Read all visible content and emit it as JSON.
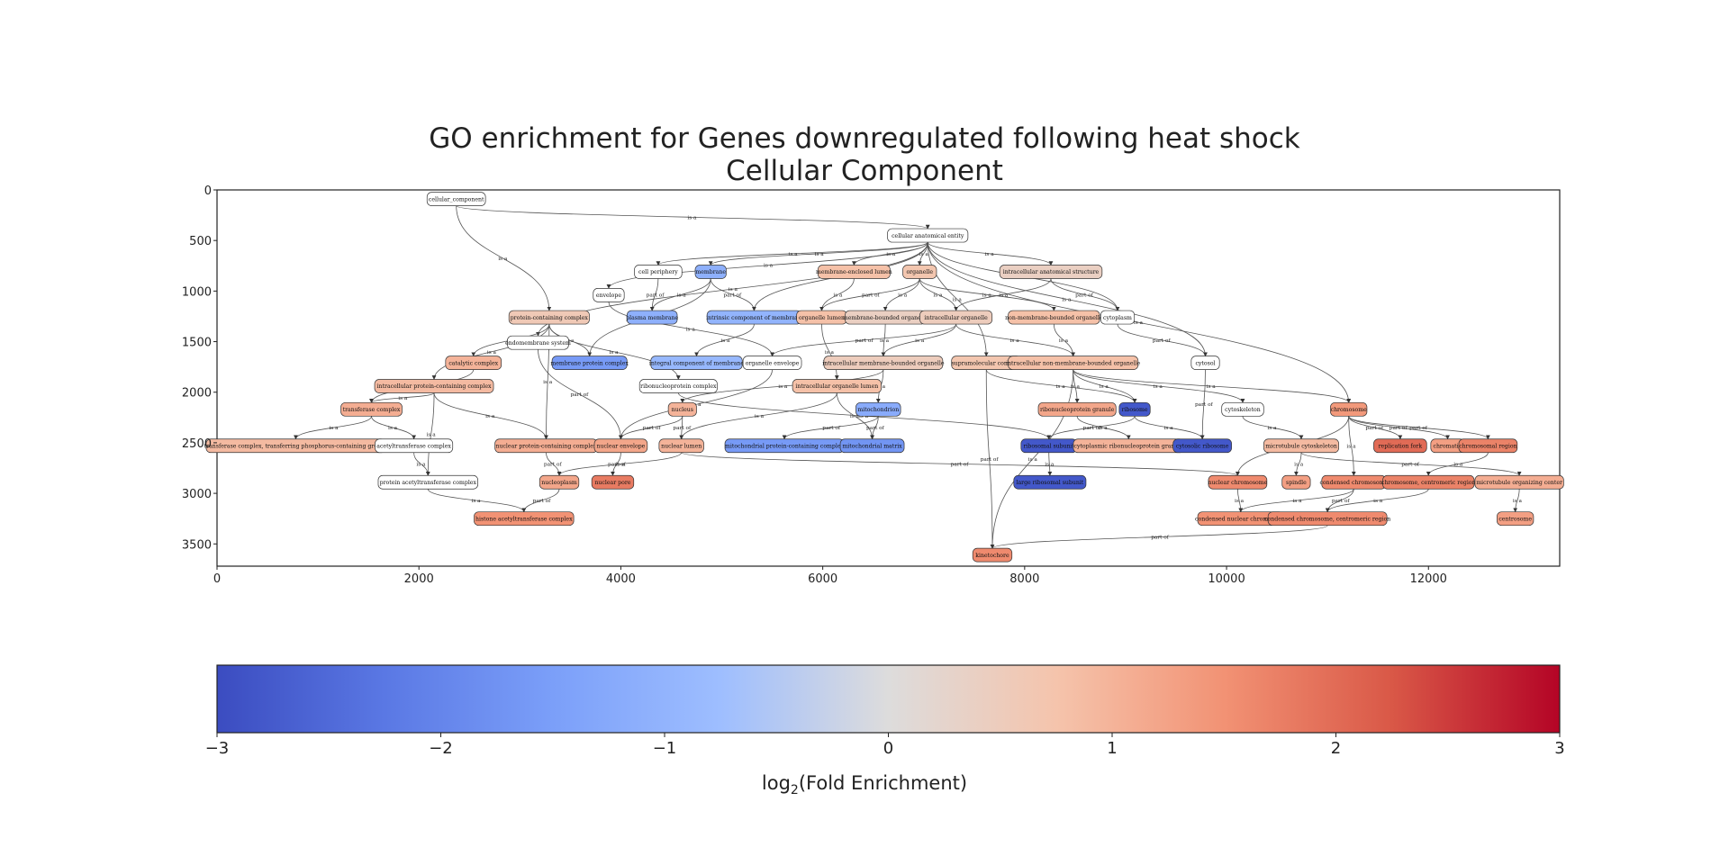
{
  "title": {
    "line1": "GO enrichment for Genes downregulated following heat shock",
    "line2": "Cellular Component"
  },
  "axes": {
    "x_ticks": [
      "0",
      "2000",
      "4000",
      "6000",
      "8000",
      "10000",
      "12000"
    ],
    "y_ticks": [
      "0",
      "500",
      "1000",
      "1500",
      "2000",
      "2500",
      "3000",
      "3500"
    ]
  },
  "colorbar": {
    "ticks": [
      "−3",
      "−2",
      "−1",
      "0",
      "1",
      "2",
      "3"
    ],
    "label_main": "log",
    "label_sub": "2",
    "label_rest": "(Fold Enrichment)",
    "range": [
      -3,
      3
    ]
  },
  "nodes": [
    {
      "id": "cc",
      "label": "cellular_component",
      "x": 2370,
      "y": 90,
      "v": null
    },
    {
      "id": "cae",
      "label": "cellular anatomical entity",
      "x": 7040,
      "y": 450,
      "v": null
    },
    {
      "id": "cp",
      "label": "cell periphery",
      "x": 4370,
      "y": 810,
      "v": null
    },
    {
      "id": "mem",
      "label": "membrane",
      "x": 4890,
      "y": 810,
      "v": -1.1
    },
    {
      "id": "mel",
      "label": "membrane-enclosed lumen",
      "x": 6310,
      "y": 810,
      "v": 0.8
    },
    {
      "id": "org",
      "label": "organelle",
      "x": 6960,
      "y": 810,
      "v": 0.7
    },
    {
      "id": "ias",
      "label": "intracellular anatomical structure",
      "x": 8260,
      "y": 810,
      "v": 0.4
    },
    {
      "id": "env",
      "label": "envelope",
      "x": 3880,
      "y": 1040,
      "v": null
    },
    {
      "id": "pm",
      "label": "plasma membrane",
      "x": 4310,
      "y": 1260,
      "v": -1.1
    },
    {
      "id": "icm",
      "label": "intrinsic component of membrane",
      "x": 5320,
      "y": 1260,
      "v": -1.0
    },
    {
      "id": "ol",
      "label": "organelle lumen",
      "x": 5990,
      "y": 1260,
      "v": 0.8
    },
    {
      "id": "mbo",
      "label": "membrane-bounded organelle",
      "x": 6620,
      "y": 1260,
      "v": 0.4
    },
    {
      "id": "io",
      "label": "intracellular organelle",
      "x": 7320,
      "y": 1260,
      "v": 0.5
    },
    {
      "id": "nmbo",
      "label": "non-membrane-bounded organelle",
      "x": 8290,
      "y": 1260,
      "v": 0.8
    },
    {
      "id": "cyto",
      "label": "cytoplasm",
      "x": 8920,
      "y": 1260,
      "v": null
    },
    {
      "id": "pcc",
      "label": "protein-containing complex",
      "x": 3290,
      "y": 1260,
      "v": 0.6
    },
    {
      "id": "ems",
      "label": "endomembrane system",
      "x": 3180,
      "y": 1510,
      "v": null
    },
    {
      "id": "cat",
      "label": "catalytic complex",
      "x": 2540,
      "y": 1710,
      "v": 1.0
    },
    {
      "id": "mpc",
      "label": "membrane protein complex",
      "x": 3690,
      "y": 1710,
      "v": -1.6
    },
    {
      "id": "intcm",
      "label": "integral component of membrane",
      "x": 4750,
      "y": 1710,
      "v": -0.9
    },
    {
      "id": "oe",
      "label": "organelle envelope",
      "x": 5500,
      "y": 1710,
      "v": null
    },
    {
      "id": "imbo",
      "label": "intracellular membrane-bounded organelle",
      "x": 6600,
      "y": 1710,
      "v": 0.5
    },
    {
      "id": "smc",
      "label": "supramolecular complex",
      "x": 7620,
      "y": 1710,
      "v": 0.7
    },
    {
      "id": "inmbo",
      "label": "intracellular non-membrane-bounded organelle",
      "x": 8480,
      "y": 1710,
      "v": 0.8
    },
    {
      "id": "cytosol",
      "label": "cytosol",
      "x": 9790,
      "y": 1710,
      "v": null
    },
    {
      "id": "ipc",
      "label": "intracellular protein-containing complex",
      "x": 2150,
      "y": 1940,
      "v": 0.9
    },
    {
      "id": "rnp",
      "label": "ribonucleoprotein complex",
      "x": 4570,
      "y": 1940,
      "v": null
    },
    {
      "id": "iol",
      "label": "intracellular organelle lumen",
      "x": 6140,
      "y": 1940,
      "v": 0.8
    },
    {
      "id": "tc",
      "label": "transferase complex",
      "x": 1530,
      "y": 2170,
      "v": 1.1
    },
    {
      "id": "nucleus",
      "label": "nucleus",
      "x": 4610,
      "y": 2170,
      "v": 1.0
    },
    {
      "id": "mito",
      "label": "mitochondrion",
      "x": 6550,
      "y": 2170,
      "v": -1.2
    },
    {
      "id": "rnpg",
      "label": "ribonucleoprotein granule",
      "x": 8520,
      "y": 2170,
      "v": 1.2
    },
    {
      "id": "ribo",
      "label": "ribosome",
      "x": 9090,
      "y": 2170,
      "v": -2.8
    },
    {
      "id": "cytosk",
      "label": "cytoskeleton",
      "x": 10160,
      "y": 2170,
      "v": null
    },
    {
      "id": "chrom",
      "label": "chromosome",
      "x": 11210,
      "y": 2170,
      "v": 1.4
    },
    {
      "id": "tcp",
      "label": "transferase complex, transferring phosphorus-containing groups",
      "x": 780,
      "y": 2530,
      "v": 0.9
    },
    {
      "id": "act",
      "label": "acetyltransferase complex",
      "x": 1950,
      "y": 2530,
      "v": null
    },
    {
      "id": "npc",
      "label": "nuclear protein-containing complex",
      "x": 3260,
      "y": 2530,
      "v": 1.1
    },
    {
      "id": "nenv",
      "label": "nuclear envelope",
      "x": 4000,
      "y": 2530,
      "v": 1.2
    },
    {
      "id": "nl",
      "label": "nuclear lumen",
      "x": 4600,
      "y": 2530,
      "v": 1.0
    },
    {
      "id": "mpcx",
      "label": "mitochondrial protein-containing complex",
      "x": 5620,
      "y": 2530,
      "v": -1.6
    },
    {
      "id": "mm",
      "label": "mitochondrial matrix",
      "x": 6490,
      "y": 2530,
      "v": -1.7
    },
    {
      "id": "rs",
      "label": "ribosomal subunit",
      "x": 8240,
      "y": 2530,
      "v": -2.8
    },
    {
      "id": "crnpg",
      "label": "cytoplasmic ribonucleoprotein granule",
      "x": 9030,
      "y": 2530,
      "v": 1.0
    },
    {
      "id": "cr",
      "label": "cytosolic ribosome",
      "x": 9760,
      "y": 2530,
      "v": -2.8
    },
    {
      "id": "mcyto",
      "label": "microtubule cytoskeleton",
      "x": 10740,
      "y": 2530,
      "v": 0.9
    },
    {
      "id": "rf",
      "label": "replication fork",
      "x": 11720,
      "y": 2530,
      "v": 2.0
    },
    {
      "id": "chromatin",
      "label": "chromatin",
      "x": 12190,
      "y": 2530,
      "v": 1.3
    },
    {
      "id": "chr",
      "label": "chromosomal region",
      "x": 12590,
      "y": 2530,
      "v": 1.7
    },
    {
      "id": "pact",
      "label": "protein acetyltransferase complex",
      "x": 2090,
      "y": 2890,
      "v": null
    },
    {
      "id": "npl",
      "label": "nucleoplasm",
      "x": 3390,
      "y": 2890,
      "v": 1.2
    },
    {
      "id": "npore",
      "label": "nuclear pore",
      "x": 3920,
      "y": 2890,
      "v": 1.8
    },
    {
      "id": "lrs",
      "label": "large ribosomal subunit",
      "x": 8250,
      "y": 2890,
      "v": -2.8
    },
    {
      "id": "nchr",
      "label": "nuclear chromosome",
      "x": 10110,
      "y": 2890,
      "v": 1.6
    },
    {
      "id": "spindle",
      "label": "spindle",
      "x": 10690,
      "y": 2890,
      "v": 1.3
    },
    {
      "id": "cchr",
      "label": "condensed chromosome",
      "x": 11260,
      "y": 2890,
      "v": 1.6
    },
    {
      "id": "ccr",
      "label": "chromosome, centromeric region",
      "x": 12000,
      "y": 2890,
      "v": 1.7
    },
    {
      "id": "moc",
      "label": "microtubule organizing center",
      "x": 12900,
      "y": 2890,
      "v": 1.1
    },
    {
      "id": "hat",
      "label": "histone acetyltransferase complex",
      "x": 3040,
      "y": 3250,
      "v": 1.5
    },
    {
      "id": "cnc",
      "label": "condensed nuclear chromosome",
      "x": 10140,
      "y": 3250,
      "v": 1.5
    },
    {
      "id": "cccr",
      "label": "condensed chromosome, centromeric region",
      "x": 11000,
      "y": 3250,
      "v": 1.6
    },
    {
      "id": "centro",
      "label": "centrosome",
      "x": 12860,
      "y": 3250,
      "v": 1.3
    },
    {
      "id": "kineto",
      "label": "kinetochore",
      "x": 7680,
      "y": 3610,
      "v": 1.6
    }
  ],
  "edges": [
    {
      "s": "cc",
      "t": "cae",
      "label": "is a"
    },
    {
      "s": "cc",
      "t": "pcc",
      "label": "is a"
    },
    {
      "s": "cae",
      "t": "cp",
      "label": "is a"
    },
    {
      "s": "cae",
      "t": "mem",
      "label": "is a"
    },
    {
      "s": "cae",
      "t": "mel",
      "label": "is a"
    },
    {
      "s": "cae",
      "t": "org",
      "label": "is a"
    },
    {
      "s": "cae",
      "t": "ias",
      "label": "is a"
    },
    {
      "s": "cae",
      "t": "env",
      "label": "is a"
    },
    {
      "s": "cae",
      "t": "icm",
      "label": "is a"
    },
    {
      "s": "cae",
      "t": "cyto",
      "label": "is a"
    },
    {
      "s": "cae",
      "t": "cytosol",
      "label": "is a"
    },
    {
      "s": "cae",
      "t": "ems",
      "label": "is a"
    },
    {
      "s": "cae",
      "t": "chrom",
      "label": "is a"
    },
    {
      "s": "cae",
      "t": "smc",
      "label": "is a"
    },
    {
      "s": "cp",
      "t": "pm",
      "label": "part of"
    },
    {
      "s": "mem",
      "t": "pm",
      "label": "is a"
    },
    {
      "s": "mem",
      "t": "icm",
      "label": "part of"
    },
    {
      "s": "mem",
      "t": "mpc",
      "label": "part of"
    },
    {
      "s": "mel",
      "t": "ol",
      "label": "is a"
    },
    {
      "s": "org",
      "t": "mbo",
      "label": "is a"
    },
    {
      "s": "org",
      "t": "io",
      "label": "is a"
    },
    {
      "s": "org",
      "t": "nmbo",
      "label": "is a"
    },
    {
      "s": "org",
      "t": "ol",
      "label": "part of"
    },
    {
      "s": "ias",
      "t": "io",
      "label": "is a"
    },
    {
      "s": "ias",
      "t": "cyto",
      "label": "part of"
    },
    {
      "s": "env",
      "t": "oe",
      "label": "is a"
    },
    {
      "s": "icm",
      "t": "intcm",
      "label": "is a"
    },
    {
      "s": "ol",
      "t": "iol",
      "label": "is a"
    },
    {
      "s": "mbo",
      "t": "imbo",
      "label": "is a"
    },
    {
      "s": "io",
      "t": "imbo",
      "label": "is a"
    },
    {
      "s": "io",
      "t": "inmbo",
      "label": "is a"
    },
    {
      "s": "io",
      "t": "oe",
      "label": "part of"
    },
    {
      "s": "nmbo",
      "t": "inmbo",
      "label": "is a"
    },
    {
      "s": "cyto",
      "t": "cytosol",
      "label": "part of"
    },
    {
      "s": "pcc",
      "t": "cat",
      "label": "is a"
    },
    {
      "s": "pcc",
      "t": "mpc",
      "label": "is a"
    },
    {
      "s": "pcc",
      "t": "ipc",
      "label": "is a"
    },
    {
      "s": "pcc",
      "t": "rnp",
      "label": "is a"
    },
    {
      "s": "pcc",
      "t": "npc",
      "label": "is a"
    },
    {
      "s": "ems",
      "t": "nenv",
      "label": "part of"
    },
    {
      "s": "cat",
      "t": "tc",
      "label": "is a"
    },
    {
      "s": "ipc",
      "t": "tc",
      "label": "is a"
    },
    {
      "s": "ipc",
      "t": "npc",
      "label": "is a"
    },
    {
      "s": "ipc",
      "t": "pact",
      "label": "is a"
    },
    {
      "s": "oe",
      "t": "nenv",
      "label": "is a"
    },
    {
      "s": "imbo",
      "t": "nucleus",
      "label": "is a"
    },
    {
      "s": "imbo",
      "t": "mito",
      "label": "is a"
    },
    {
      "s": "iol",
      "t": "nl",
      "label": "is a"
    },
    {
      "s": "iol",
      "t": "mm",
      "label": "is a"
    },
    {
      "s": "inmbo",
      "t": "rnpg",
      "label": "is a"
    },
    {
      "s": "inmbo",
      "t": "ribo",
      "label": "is a"
    },
    {
      "s": "inmbo",
      "t": "cytosk",
      "label": "is a"
    },
    {
      "s": "inmbo",
      "t": "chrom",
      "label": "is a"
    },
    {
      "s": "inmbo",
      "t": "kineto",
      "label": "is a"
    },
    {
      "s": "smc",
      "t": "kineto",
      "label": "part of"
    },
    {
      "s": "smc",
      "t": "ribo",
      "label": "is a"
    },
    {
      "s": "cytosol",
      "t": "cr",
      "label": "part of"
    },
    {
      "s": "rnp",
      "t": "rs",
      "label": "is a"
    },
    {
      "s": "tc",
      "t": "tcp",
      "label": "is a"
    },
    {
      "s": "tc",
      "t": "act",
      "label": "is a"
    },
    {
      "s": "nucleus",
      "t": "nenv",
      "label": "part of"
    },
    {
      "s": "nucleus",
      "t": "nl",
      "label": "part of"
    },
    {
      "s": "mito",
      "t": "mpcx",
      "label": "part of"
    },
    {
      "s": "mito",
      "t": "mm",
      "label": "part of"
    },
    {
      "s": "rnpg",
      "t": "crnpg",
      "label": "is a"
    },
    {
      "s": "ribo",
      "t": "rs",
      "label": "part of"
    },
    {
      "s": "ribo",
      "t": "cr",
      "label": "is a"
    },
    {
      "s": "cytosk",
      "t": "mcyto",
      "label": "is a"
    },
    {
      "s": "chrom",
      "t": "rf",
      "label": "part of"
    },
    {
      "s": "chrom",
      "t": "chromatin",
      "label": "part of"
    },
    {
      "s": "chrom",
      "t": "chr",
      "label": "part of"
    },
    {
      "s": "chrom",
      "t": "nchr",
      "label": "is a"
    },
    {
      "s": "chrom",
      "t": "cchr",
      "label": "is a"
    },
    {
      "s": "act",
      "t": "pact",
      "label": "is a"
    },
    {
      "s": "npc",
      "t": "npl",
      "label": "part of"
    },
    {
      "s": "nenv",
      "t": "npore",
      "label": "part of"
    },
    {
      "s": "nl",
      "t": "npl",
      "label": "is a"
    },
    {
      "s": "nl",
      "t": "nchr",
      "label": "part of"
    },
    {
      "s": "rs",
      "t": "lrs",
      "label": "is a"
    },
    {
      "s": "mcyto",
      "t": "spindle",
      "label": "is a"
    },
    {
      "s": "mcyto",
      "t": "moc",
      "label": "part of"
    },
    {
      "s": "chr",
      "t": "ccr",
      "label": "is a"
    },
    {
      "s": "pact",
      "t": "hat",
      "label": "is a"
    },
    {
      "s": "npl",
      "t": "hat",
      "label": "part of"
    },
    {
      "s": "nchr",
      "t": "cnc",
      "label": "is a"
    },
    {
      "s": "cchr",
      "t": "cnc",
      "label": "is a"
    },
    {
      "s": "cchr",
      "t": "cccr",
      "label": "part of"
    },
    {
      "s": "ccr",
      "t": "cccr",
      "label": "is a"
    },
    {
      "s": "moc",
      "t": "centro",
      "label": "is a"
    },
    {
      "s": "cccr",
      "t": "kineto",
      "label": "part of"
    }
  ]
}
